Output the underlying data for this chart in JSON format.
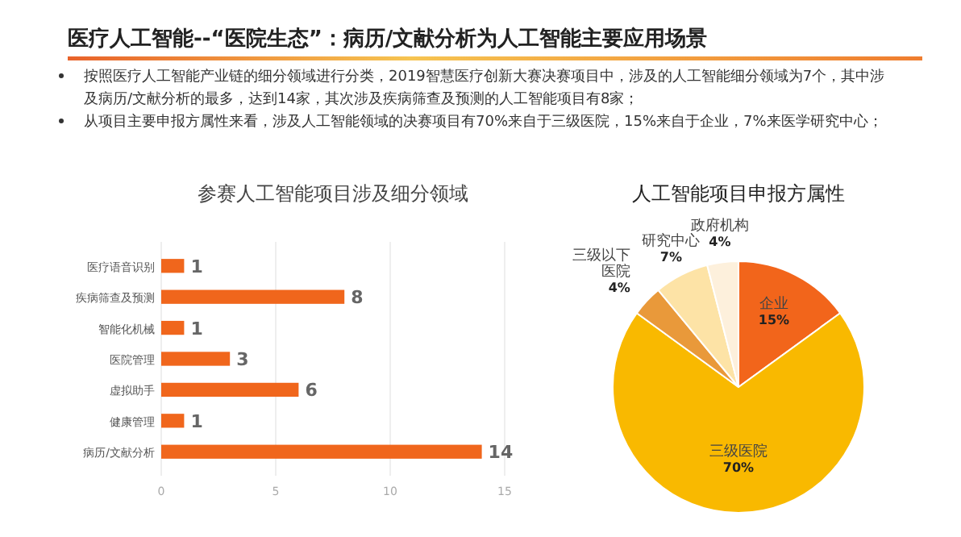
{
  "chart_data": [
    {
      "type": "bar",
      "title": "参赛人工智能项目涉及细分领域",
      "orientation": "horizontal",
      "categories": [
        "医疗语音识别",
        "疾病筛查及预测",
        "智能化机械",
        "医院管理",
        "虚拟助手",
        "健康管理",
        "病历/文献分析"
      ],
      "values": [
        1,
        8,
        1,
        3,
        6,
        1,
        14
      ],
      "color": "#f0661c",
      "xlim": [
        0,
        15
      ],
      "xticks": [
        0,
        5,
        10,
        15
      ],
      "grid": "x",
      "data_labels": true,
      "annotations": [
        "医疗人工智能--“医院生态”：病历/文献分析为人工智能主要应用场景",
        "按照医疗人工智能产业链的细分领域进行分类，2019智慧医疗创新大赛决赛项目中，涉及的人工智能细分领域为7个，其中涉及病历/文献分析的最多，达到14家，其次涉及疾病筛查及预测的人工智能项目有8家；",
        "从项目主要申报方属性来看，涉及人工智能领域的决赛项目有70%来自于三级医院，15%来自于企业，7%来医学研究中心；"
      ]
    },
    {
      "type": "pie",
      "title": "人工智能项目申报方属性",
      "categories": [
        "企业",
        "三级医院",
        "三级以下医院",
        "研究中心",
        "政府机构"
      ],
      "values": [
        15,
        70,
        4,
        7,
        4
      ],
      "colors": [
        "#f2651b",
        "#f9b900",
        "#e9993a",
        "#fde3a6",
        "#fdf0dc"
      ],
      "value_labels": [
        "15%",
        "70%",
        "4%",
        "7%",
        "4%"
      ]
    }
  ]
}
